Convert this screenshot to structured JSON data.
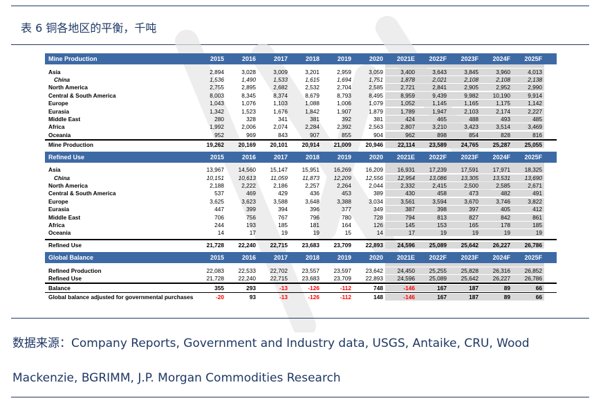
{
  "caption": "表 6 铜各地区的平衡，千吨",
  "years": [
    "2015",
    "2016",
    "2017",
    "2018",
    "2019",
    "2020",
    "2021E",
    "2022F",
    "2023F",
    "2024F",
    "2025F"
  ],
  "forecast_start_index": 6,
  "sections": [
    {
      "title": "Mine Production",
      "rows": [
        {
          "label": "Asia",
          "values": [
            "2,894",
            "3,028",
            "3,009",
            "3,201",
            "2,959",
            "3,059",
            "3,400",
            "3,643",
            "3,845",
            "3,960",
            "4,013"
          ]
        },
        {
          "label": "China",
          "italic": true,
          "values": [
            "1,536",
            "1,490",
            "1,533",
            "1,615",
            "1,694",
            "1,751",
            "1,878",
            "2,021",
            "2,108",
            "2,108",
            "2,138"
          ]
        },
        {
          "label": "North America",
          "values": [
            "2,755",
            "2,895",
            "2,682",
            "2,532",
            "2,704",
            "2,585",
            "2,721",
            "2,841",
            "2,905",
            "2,952",
            "2,990"
          ]
        },
        {
          "label": "Central & South America",
          "values": [
            "8,003",
            "8,345",
            "8,374",
            "8,679",
            "8,793",
            "8,495",
            "8,959",
            "9,439",
            "9,982",
            "10,190",
            "9,914"
          ]
        },
        {
          "label": "Europe",
          "values": [
            "1,043",
            "1,076",
            "1,103",
            "1,088",
            "1,006",
            "1,079",
            "1,052",
            "1,145",
            "1,165",
            "1,175",
            "1,142"
          ]
        },
        {
          "label": "Eurasia",
          "values": [
            "1,342",
            "1,523",
            "1,676",
            "1,842",
            "1,907",
            "1,879",
            "1,789",
            "1,947",
            "2,103",
            "2,174",
            "2,227"
          ]
        },
        {
          "label": "Middle East",
          "values": [
            "280",
            "328",
            "341",
            "381",
            "392",
            "381",
            "424",
            "465",
            "488",
            "493",
            "485"
          ]
        },
        {
          "label": "Africa",
          "values": [
            "1,992",
            "2,006",
            "2,074",
            "2,284",
            "2,392",
            "2,563",
            "2,807",
            "3,210",
            "3,423",
            "3,514",
            "3,469"
          ]
        },
        {
          "label": "Oceania",
          "values": [
            "952",
            "969",
            "843",
            "907",
            "855",
            "904",
            "962",
            "898",
            "854",
            "828",
            "816"
          ]
        }
      ],
      "totals": [
        {
          "label": "Mine Production",
          "values": [
            "19,262",
            "20,169",
            "20,101",
            "20,914",
            "21,009",
            "20,946",
            "22,114",
            "23,589",
            "24,765",
            "25,287",
            "25,055"
          ]
        }
      ]
    },
    {
      "title": "Refined Use",
      "rows": [
        {
          "label": "Asia",
          "values": [
            "13,967",
            "14,560",
            "15,147",
            "15,951",
            "16,269",
            "16,209",
            "16,931",
            "17,239",
            "17,591",
            "17,971",
            "18,325"
          ]
        },
        {
          "label": "China",
          "italic": true,
          "values": [
            "10,151",
            "10,613",
            "11,059",
            "11,873",
            "12,209",
            "12,556",
            "12,954",
            "13,086",
            "13,305",
            "13,531",
            "13,690"
          ]
        },
        {
          "label": "North America",
          "values": [
            "2,188",
            "2,222",
            "2,186",
            "2,257",
            "2,264",
            "2,044",
            "2,332",
            "2,415",
            "2,500",
            "2,585",
            "2,671"
          ]
        },
        {
          "label": "Central & South America",
          "values": [
            "537",
            "469",
            "429",
            "436",
            "453",
            "389",
            "430",
            "458",
            "473",
            "482",
            "491"
          ]
        },
        {
          "label": "Europe",
          "values": [
            "3,625",
            "3,623",
            "3,588",
            "3,648",
            "3,388",
            "3,034",
            "3,561",
            "3,594",
            "3,670",
            "3,746",
            "3,822"
          ]
        },
        {
          "label": "Eurasia",
          "values": [
            "447",
            "399",
            "394",
            "396",
            "377",
            "349",
            "387",
            "398",
            "397",
            "405",
            "412"
          ]
        },
        {
          "label": "Middle East",
          "values": [
            "706",
            "756",
            "767",
            "796",
            "780",
            "728",
            "794",
            "813",
            "827",
            "842",
            "861"
          ]
        },
        {
          "label": "Africa",
          "values": [
            "244",
            "193",
            "185",
            "181",
            "164",
            "126",
            "145",
            "153",
            "165",
            "178",
            "185"
          ]
        },
        {
          "label": "Oceania",
          "values": [
            "14",
            "17",
            "19",
            "19",
            "15",
            "14",
            "17",
            "19",
            "19",
            "19",
            "19"
          ]
        }
      ],
      "totals": [
        {
          "label": "Refined Use",
          "values": [
            "21,728",
            "22,240",
            "22,715",
            "23,683",
            "23,709",
            "22,893",
            "24,596",
            "25,089",
            "25,642",
            "26,227",
            "26,786"
          ]
        }
      ]
    },
    {
      "title": "Global Balance",
      "rows": [
        {
          "label": "Refined Production",
          "values": [
            "22,083",
            "22,533",
            "22,702",
            "23,557",
            "23,597",
            "23,642",
            "24,450",
            "25,255",
            "25,828",
            "26,316",
            "26,852"
          ]
        },
        {
          "label": "Refined Use",
          "values": [
            "21,728",
            "22,240",
            "22,715",
            "23,683",
            "23,709",
            "22,893",
            "24,596",
            "25,089",
            "25,642",
            "26,227",
            "26,786"
          ]
        }
      ],
      "totals": [
        {
          "label": "Balance",
          "values": [
            "355",
            "293",
            "-13",
            "-126",
            "-112",
            "748",
            "-146",
            "167",
            "187",
            "89",
            "66"
          ]
        },
        {
          "label": "Global balance adjusted for governmental purchases",
          "values": [
            "-20",
            "93",
            "-13",
            "-126",
            "-112",
            "148",
            "-146",
            "167",
            "187",
            "89",
            "66"
          ]
        }
      ]
    }
  ],
  "source_line1": "数据来源：Company Reports, Government and Industry data, USGS, Antaike, CRU, Wood",
  "source_line2": "Mackenzie, BGRIMM, J.P. Morgan Commodities Research",
  "colors": {
    "header_bg": "#3d6aa5",
    "forecast_bg": "#d9d9d9",
    "negative": "#ff0000",
    "accent": "#1f3864"
  }
}
